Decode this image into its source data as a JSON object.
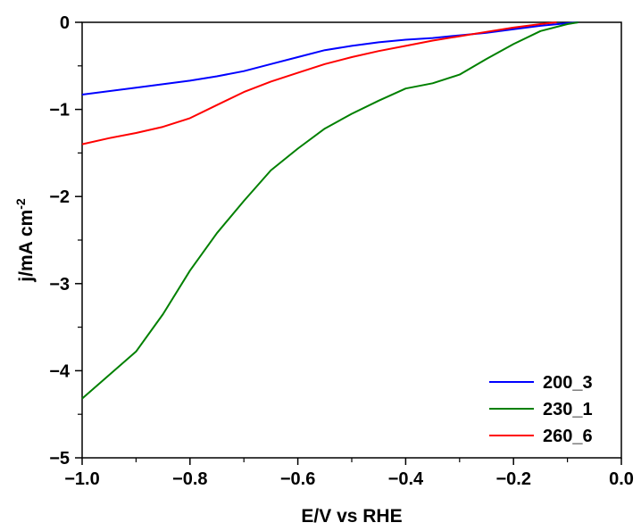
{
  "chart_data": {
    "type": "line",
    "xlabel": "E/V vs RHE",
    "ylabel_main": "j/mA cm",
    "ylabel_sup": "-2",
    "xlim": [
      -1.0,
      0.0
    ],
    "ylim": [
      -5,
      0
    ],
    "x_ticks": [
      -1.0,
      -0.8,
      -0.6,
      -0.4,
      -0.2,
      0.0
    ],
    "x_tick_labels": [
      "−1.0",
      "−0.8",
      "−0.6",
      "−0.4",
      "−0.2",
      "0.0"
    ],
    "y_ticks": [
      0,
      -1,
      -2,
      -3,
      -4,
      -5
    ],
    "y_tick_labels": [
      "0",
      "−1",
      "−2",
      "−3",
      "−4",
      "−5"
    ],
    "grid": false,
    "legend_position": "bottom-right",
    "series": [
      {
        "name": "200_3",
        "color": "#0000ff",
        "x": [
          -1.0,
          -0.9,
          -0.8,
          -0.75,
          -0.7,
          -0.65,
          -0.6,
          -0.55,
          -0.5,
          -0.45,
          -0.4,
          -0.35,
          -0.3,
          -0.25,
          -0.2,
          -0.15,
          -0.1,
          -0.08
        ],
        "y": [
          -0.83,
          -0.75,
          -0.67,
          -0.62,
          -0.56,
          -0.48,
          -0.4,
          -0.32,
          -0.27,
          -0.23,
          -0.2,
          -0.18,
          -0.15,
          -0.12,
          -0.08,
          -0.04,
          -0.01,
          0.0
        ]
      },
      {
        "name": "230_1",
        "color": "#008000",
        "x": [
          -1.0,
          -0.95,
          -0.9,
          -0.85,
          -0.8,
          -0.75,
          -0.7,
          -0.65,
          -0.6,
          -0.55,
          -0.5,
          -0.45,
          -0.4,
          -0.35,
          -0.3,
          -0.25,
          -0.2,
          -0.15,
          -0.1,
          -0.08
        ],
        "y": [
          -4.32,
          -4.05,
          -3.78,
          -3.35,
          -2.85,
          -2.42,
          -2.05,
          -1.7,
          -1.45,
          -1.22,
          -1.05,
          -0.9,
          -0.76,
          -0.7,
          -0.6,
          -0.42,
          -0.25,
          -0.1,
          -0.02,
          0.0
        ]
      },
      {
        "name": "260_6",
        "color": "#ff0000",
        "x": [
          -1.0,
          -0.95,
          -0.9,
          -0.85,
          -0.8,
          -0.75,
          -0.7,
          -0.65,
          -0.6,
          -0.55,
          -0.5,
          -0.45,
          -0.4,
          -0.35,
          -0.3,
          -0.25,
          -0.2,
          -0.15,
          -0.12
        ],
        "y": [
          -1.4,
          -1.33,
          -1.27,
          -1.2,
          -1.1,
          -0.95,
          -0.8,
          -0.68,
          -0.58,
          -0.48,
          -0.4,
          -0.33,
          -0.27,
          -0.21,
          -0.16,
          -0.11,
          -0.06,
          -0.02,
          0.0
        ]
      }
    ]
  }
}
